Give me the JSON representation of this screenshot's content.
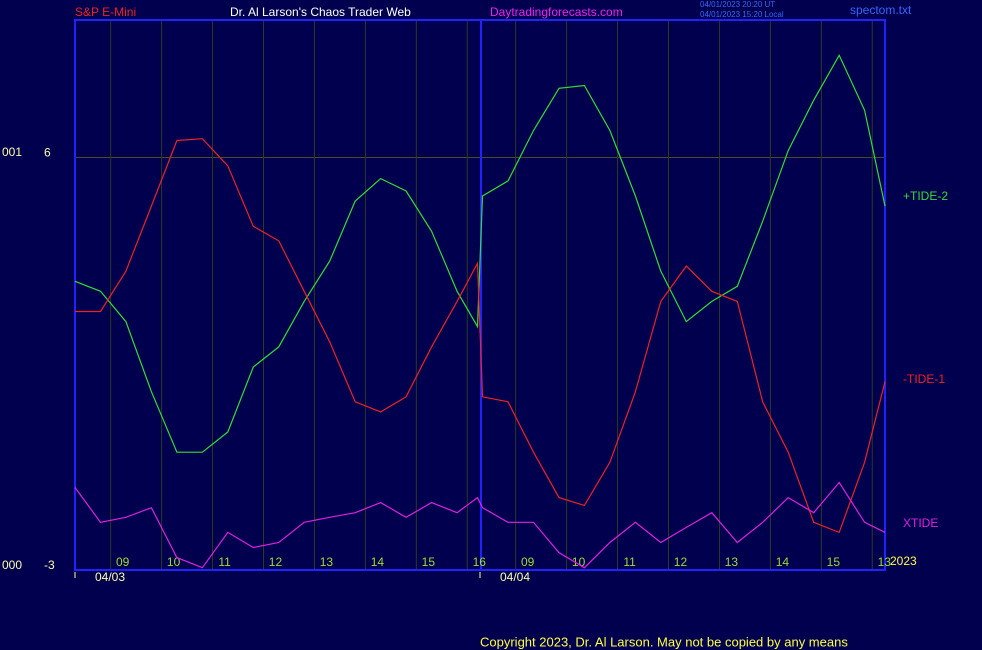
{
  "chart_data": {
    "type": "line",
    "title": "Dr. Al Larson's Chaos Trader Web",
    "instrument": "S&P E-Mini",
    "website": "Daytradingforecasts.com",
    "timestamps": [
      "04/01/2023 20:20 UT",
      "04/01/2023 15:20 Local"
    ],
    "file": "spectom.txt",
    "year": "2023",
    "copyright": "Copyright 2023, Dr. Al Larson. May not be copied by any means",
    "annotations": [
      "001",
      "000"
    ],
    "date_labels": [
      "04/03",
      "04/04"
    ],
    "x": [
      0,
      0.5,
      1,
      1.5,
      2,
      2.5,
      3,
      3.5,
      4,
      4.5,
      5,
      5.5,
      6,
      6.5,
      7,
      7.5,
      7.9,
      8.0,
      8.5,
      9,
      9.5,
      10,
      10.5,
      11,
      11.5,
      12,
      12.5,
      13,
      13.5,
      14,
      14.5,
      15,
      15.5,
      15.9
    ],
    "xlim": [
      0,
      15.9
    ],
    "xticks": [
      {
        "value": 0.7,
        "label": "09"
      },
      {
        "value": 1.7,
        "label": "10"
      },
      {
        "value": 2.7,
        "label": "11"
      },
      {
        "value": 3.7,
        "label": "12"
      },
      {
        "value": 4.7,
        "label": "13"
      },
      {
        "value": 5.7,
        "label": "14"
      },
      {
        "value": 6.7,
        "label": "15"
      },
      {
        "value": 7.7,
        "label": "16"
      },
      {
        "value": 8.65,
        "label": "09"
      },
      {
        "value": 9.65,
        "label": "10"
      },
      {
        "value": 10.65,
        "label": "11"
      },
      {
        "value": 11.65,
        "label": "12"
      },
      {
        "value": 12.65,
        "label": "13"
      },
      {
        "value": 13.65,
        "label": "14"
      },
      {
        "value": 14.65,
        "label": "15"
      },
      {
        "value": 15.65,
        "label": "13"
      }
    ],
    "ylim": [
      -3,
      9
    ],
    "yticks": [
      6,
      -3
    ],
    "series": [
      {
        "name": "+TIDE-2",
        "color": "#33dd33",
        "values": [
          3.3,
          3.08,
          2.42,
          0.89,
          -0.43,
          -0.43,
          0.01,
          1.43,
          1.87,
          2.86,
          3.74,
          5.05,
          5.54,
          5.27,
          4.39,
          3.08,
          2.31,
          5.16,
          5.49,
          6.59,
          7.51,
          7.57,
          6.59,
          5.16,
          3.52,
          2.42,
          2.86,
          3.19,
          4.61,
          6.15,
          7.25,
          8.23,
          7.03,
          4.94
        ]
      },
      {
        "name": "-TIDE-1",
        "color": "#ee2222",
        "values": [
          2.64,
          2.64,
          3.52,
          4.94,
          6.37,
          6.41,
          5.82,
          4.5,
          4.18,
          3.08,
          1.98,
          0.67,
          0.45,
          0.78,
          1.87,
          2.86,
          3.69,
          0.78,
          0.67,
          -0.43,
          -1.42,
          -1.59,
          -0.65,
          0.89,
          2.86,
          3.63,
          3.08,
          2.86,
          0.67,
          -0.43,
          -1.96,
          -2.18,
          -0.65,
          1.11
        ]
      },
      {
        "name": "XTIDE",
        "color": "#dd22dd",
        "values": [
          -1.2,
          -1.96,
          -1.85,
          -1.64,
          -2.73,
          -2.95,
          -2.18,
          -2.51,
          -2.4,
          -1.96,
          -1.85,
          -1.75,
          -1.53,
          -1.85,
          -1.53,
          -1.75,
          -1.42,
          -1.64,
          -1.96,
          -1.96,
          -2.62,
          -2.95,
          -2.4,
          -1.96,
          -2.4,
          -2.07,
          -1.75,
          -2.4,
          -1.96,
          -1.42,
          -1.75,
          -1.09,
          -1.96,
          -2.18
        ]
      }
    ],
    "grid": true
  }
}
